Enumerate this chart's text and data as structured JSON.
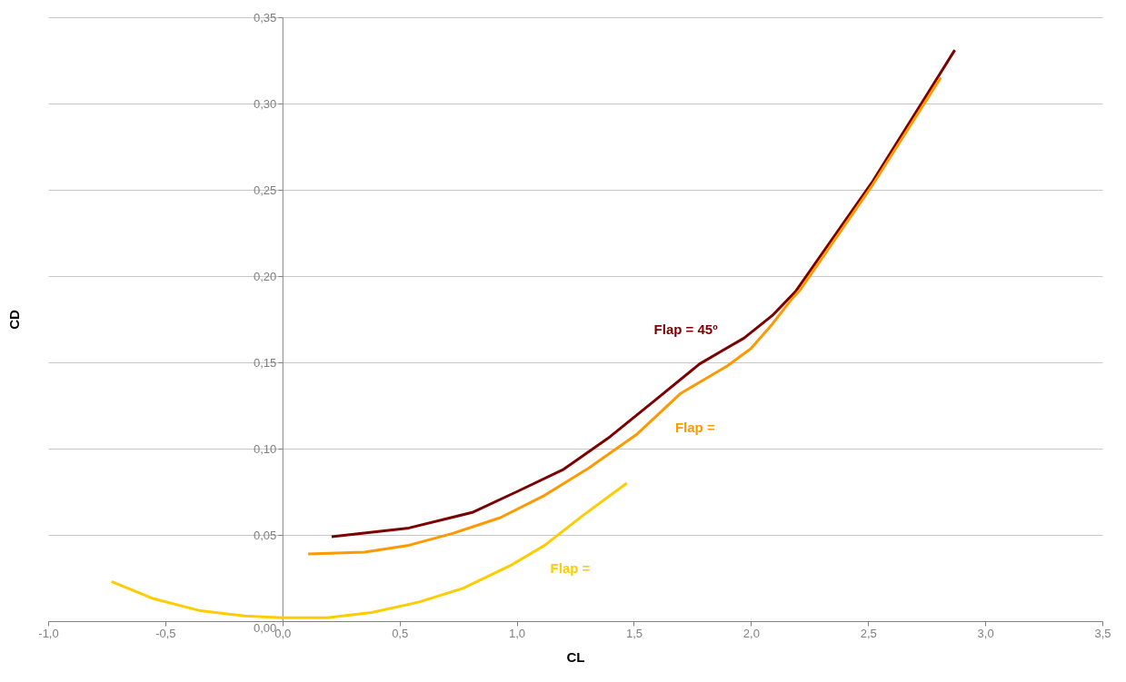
{
  "chart_data": {
    "type": "line",
    "xlabel": "CL",
    "ylabel": "CD",
    "series": [
      {
        "name": "Flap = 45º",
        "color": "#7b0000",
        "x": [
          0.21,
          0.54,
          0.81,
          1.0,
          1.2,
          1.39,
          1.59,
          1.78,
          1.88,
          1.97,
          2.09,
          2.19,
          2.52,
          2.87
        ],
        "values": [
          0.049,
          0.054,
          0.063,
          0.075,
          0.088,
          0.106,
          0.128,
          0.149,
          0.157,
          0.164,
          0.177,
          0.191,
          0.255,
          0.331
        ]
      },
      {
        "name": "Flap =",
        "color": "#ff9900",
        "x": [
          0.11,
          0.35,
          0.54,
          0.73,
          0.93,
          1.12,
          1.31,
          1.51,
          1.7,
          1.8,
          1.9,
          2.0,
          2.09,
          2.17,
          2.21,
          2.52,
          2.81
        ],
        "values": [
          0.039,
          0.04,
          0.044,
          0.051,
          0.06,
          0.073,
          0.089,
          0.108,
          0.132,
          0.14,
          0.148,
          0.158,
          0.172,
          0.186,
          0.192,
          0.253,
          0.315
        ]
      },
      {
        "name": "Flap =",
        "color": "#ffcc00",
        "x": [
          -0.73,
          -0.55,
          -0.35,
          -0.16,
          0.0,
          0.19,
          0.38,
          0.58,
          0.77,
          0.97,
          1.12,
          1.28,
          1.47
        ],
        "values": [
          0.023,
          0.013,
          0.006,
          0.003,
          0.002,
          0.002,
          0.005,
          0.011,
          0.019,
          0.032,
          0.044,
          0.061,
          0.08
        ]
      }
    ],
    "xlim": [
      -1.0,
      3.5
    ],
    "xticks": [
      {
        "value": -1.0,
        "label": "-1,0"
      },
      {
        "value": -0.5,
        "label": "-0,5"
      },
      {
        "value": 0.0,
        "label": "0,0"
      },
      {
        "value": 0.5,
        "label": "0,5"
      },
      {
        "value": 1.0,
        "label": "1,0"
      },
      {
        "value": 1.5,
        "label": "1,5"
      },
      {
        "value": 2.0,
        "label": "2,0"
      },
      {
        "value": 2.5,
        "label": "2,5"
      },
      {
        "value": 3.0,
        "label": "3,0"
      },
      {
        "value": 3.5,
        "label": "3,5"
      }
    ],
    "ylim": [
      0.0,
      0.35
    ],
    "yticks": [
      {
        "value": 0.0,
        "label": "0,00"
      },
      {
        "value": 0.05,
        "label": "0,05"
      },
      {
        "value": 0.1,
        "label": "0,10"
      },
      {
        "value": 0.15,
        "label": "0,15"
      },
      {
        "value": 0.2,
        "label": "0,20"
      },
      {
        "value": 0.25,
        "label": "0,25"
      },
      {
        "value": 0.3,
        "label": "0,30"
      },
      {
        "value": 0.35,
        "label": "0,35"
      }
    ],
    "grid": "y",
    "marker": "none",
    "line_style": "solid"
  }
}
